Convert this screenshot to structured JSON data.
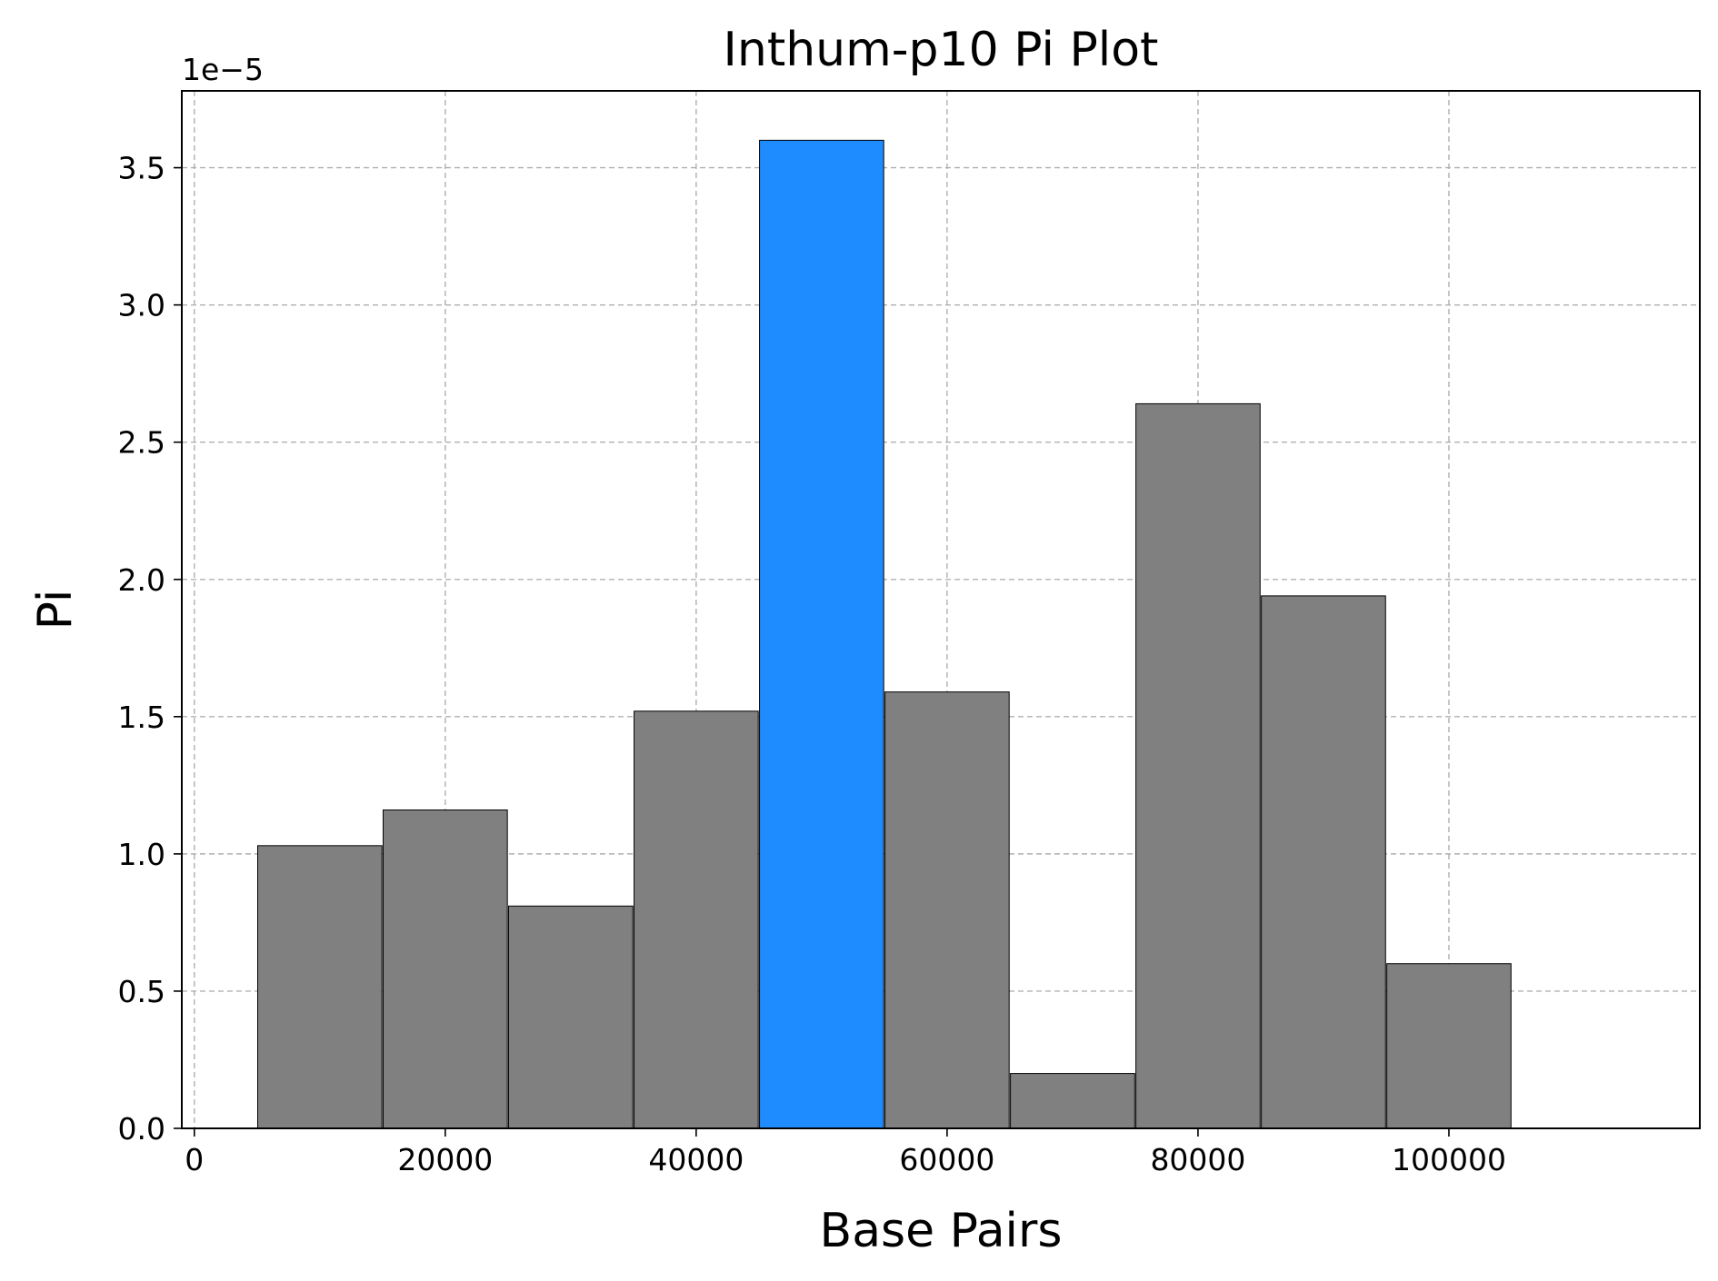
{
  "chart_data": {
    "type": "bar",
    "title": "Inthum-p10 Pi Plot",
    "xlabel": "Base Pairs",
    "ylabel": "Pi",
    "y_scale_label": "1e−5",
    "y_multiplier": 1e-05,
    "xlim": [
      -1000,
      120000
    ],
    "ylim": [
      0,
      3.78
    ],
    "grid": true,
    "x_ticks": [
      0,
      20000,
      40000,
      60000,
      80000,
      100000
    ],
    "x_tick_labels": [
      "0",
      "20000",
      "40000",
      "60000",
      "80000",
      "100000"
    ],
    "y_ticks": [
      0.0,
      0.5,
      1.0,
      1.5,
      2.0,
      2.5,
      3.0,
      3.5
    ],
    "y_tick_labels": [
      "0.0",
      "0.5",
      "1.0",
      "1.5",
      "2.0",
      "2.5",
      "3.0",
      "3.5"
    ],
    "bar_width": 9900,
    "bars": [
      {
        "x": 10000,
        "value": 1.03,
        "color": "#808080"
      },
      {
        "x": 20000,
        "value": 1.16,
        "color": "#808080"
      },
      {
        "x": 30000,
        "value": 0.81,
        "color": "#808080"
      },
      {
        "x": 40000,
        "value": 1.52,
        "color": "#808080"
      },
      {
        "x": 50000,
        "value": 3.6,
        "color": "#1e8cff"
      },
      {
        "x": 60000,
        "value": 1.59,
        "color": "#808080"
      },
      {
        "x": 70000,
        "value": 0.2,
        "color": "#808080"
      },
      {
        "x": 80000,
        "value": 2.64,
        "color": "#808080"
      },
      {
        "x": 90000,
        "value": 1.94,
        "color": "#808080"
      },
      {
        "x": 100000,
        "value": 0.6,
        "color": "#808080"
      }
    ]
  }
}
